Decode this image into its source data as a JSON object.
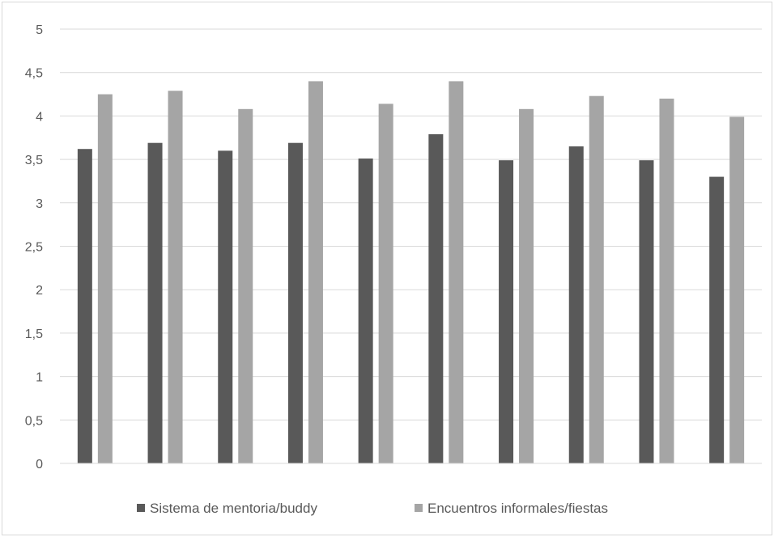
{
  "chart_data": {
    "type": "bar",
    "categories": [
      "",
      "",
      "",
      "",
      "",
      "",
      "",
      "",
      "",
      ""
    ],
    "series": [
      {
        "name": "Sistema de mentoria/buddy",
        "color": "#595959",
        "values": [
          3.62,
          3.69,
          3.6,
          3.69,
          3.51,
          3.79,
          3.49,
          3.65,
          3.49,
          3.3
        ]
      },
      {
        "name": "Encuentros informales/fiestas",
        "color": "#a5a5a5",
        "values": [
          4.25,
          4.29,
          4.08,
          4.4,
          4.14,
          4.4,
          4.08,
          4.23,
          4.2,
          3.99
        ]
      }
    ],
    "ylim": [
      0,
      5
    ],
    "yticks": [
      "0",
      "0,5",
      "1",
      "1,5",
      "2",
      "2,5",
      "3",
      "3,5",
      "4",
      "4,5",
      "5"
    ],
    "grid": true,
    "legend": "bottom",
    "title": "",
    "xlabel": "",
    "ylabel": ""
  }
}
